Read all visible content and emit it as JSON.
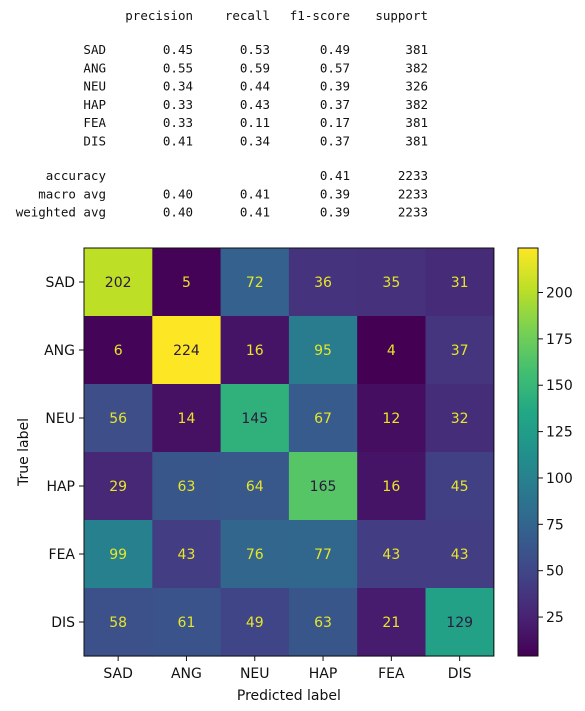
{
  "report": {
    "headers": [
      "precision",
      "recall",
      "f1-score",
      "support"
    ],
    "rows": [
      {
        "label": "SAD",
        "precision": "0.45",
        "recall": "0.53",
        "f1": "0.49",
        "support": "381"
      },
      {
        "label": "ANG",
        "precision": "0.55",
        "recall": "0.59",
        "f1": "0.57",
        "support": "382"
      },
      {
        "label": "NEU",
        "precision": "0.34",
        "recall": "0.44",
        "f1": "0.39",
        "support": "326"
      },
      {
        "label": "HAP",
        "precision": "0.33",
        "recall": "0.43",
        "f1": "0.37",
        "support": "382"
      },
      {
        "label": "FEA",
        "precision": "0.33",
        "recall": "0.11",
        "f1": "0.17",
        "support": "381"
      },
      {
        "label": "DIS",
        "precision": "0.41",
        "recall": "0.34",
        "f1": "0.37",
        "support": "381"
      }
    ],
    "summary": [
      {
        "label": "accuracy",
        "precision": "",
        "recall": "",
        "f1": "0.41",
        "support": "2233"
      },
      {
        "label": "macro avg",
        "precision": "0.40",
        "recall": "0.41",
        "f1": "0.39",
        "support": "2233"
      },
      {
        "label": "weighted avg",
        "precision": "0.40",
        "recall": "0.41",
        "f1": "0.39",
        "support": "2233"
      }
    ]
  },
  "chart_data": {
    "type": "heatmap",
    "xlabel": "Predicted label",
    "ylabel": "True label",
    "x_labels": [
      "SAD",
      "ANG",
      "NEU",
      "HAP",
      "FEA",
      "DIS"
    ],
    "y_labels": [
      "SAD",
      "ANG",
      "NEU",
      "HAP",
      "FEA",
      "DIS"
    ],
    "matrix": [
      [
        202,
        5,
        72,
        36,
        35,
        31
      ],
      [
        6,
        224,
        16,
        95,
        4,
        37
      ],
      [
        56,
        14,
        145,
        67,
        12,
        32
      ],
      [
        29,
        63,
        64,
        165,
        16,
        45
      ],
      [
        99,
        43,
        76,
        77,
        43,
        43
      ],
      [
        58,
        61,
        49,
        63,
        21,
        129
      ]
    ],
    "vmin": 4,
    "vmax": 224,
    "colorbar_ticks": [
      25,
      50,
      75,
      100,
      125,
      150,
      175,
      200
    ],
    "colormap": "viridis"
  }
}
